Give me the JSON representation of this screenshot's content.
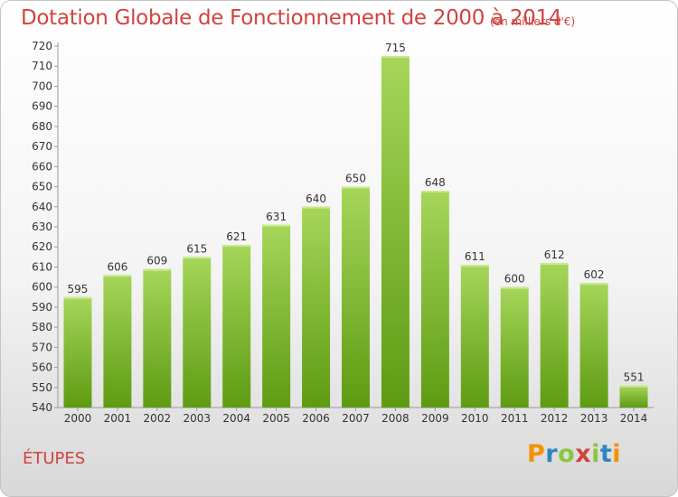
{
  "header": {
    "title": "Dotation Globale de Fonctionnement de 2000 à 2014",
    "unit": "(en milliers d'€)"
  },
  "footer": {
    "commune": "ÉTUPES",
    "logo_text": "Proxiti",
    "logo_colors": [
      "#f39200",
      "#2e86c1",
      "#8cc63f",
      "#d0433f",
      "#8cc63f",
      "#2e86c1",
      "#f39200"
    ]
  },
  "colors": {
    "bar_top": "#a6d65a",
    "bar_bottom": "#5e9b12",
    "title": "#d0433f"
  },
  "chart_data": {
    "type": "bar",
    "title": "Dotation Globale de Fonctionnement de 2000 à 2014",
    "xlabel": "",
    "ylabel": "",
    "categories": [
      "2000",
      "2001",
      "2002",
      "2003",
      "2004",
      "2005",
      "2006",
      "2007",
      "2008",
      "2009",
      "2010",
      "2011",
      "2012",
      "2013",
      "2014"
    ],
    "values": [
      595,
      606,
      609,
      615,
      621,
      631,
      640,
      650,
      715,
      648,
      611,
      600,
      612,
      602,
      551
    ],
    "ylim": [
      540,
      720
    ],
    "ytick_step": 10,
    "grid": false,
    "legend": "none"
  }
}
